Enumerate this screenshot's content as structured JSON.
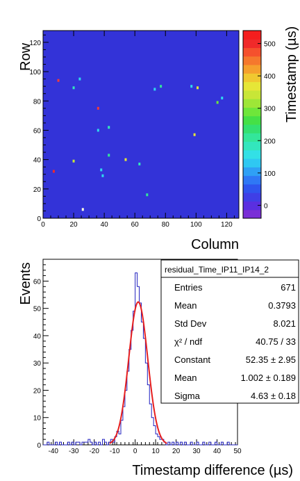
{
  "chart_data": [
    {
      "type": "heatmap",
      "xlabel": "Column",
      "ylabel": "Row",
      "colorbar_label": "Timestamp (µs)",
      "xlim": [
        0,
        128
      ],
      "ylim": [
        0,
        128
      ],
      "zlim": [
        -40,
        540
      ],
      "xticks": [
        0,
        20,
        40,
        60,
        80,
        100,
        120
      ],
      "yticks": [
        0,
        20,
        40,
        60,
        80,
        100,
        120
      ],
      "colorbar_ticks": [
        0,
        100,
        200,
        300,
        400,
        500
      ],
      "background_color": "#3333d8",
      "colorbar_colors": [
        "#7a2fd6",
        "#5a2fe0",
        "#3f3fe6",
        "#2f55ee",
        "#2f78f5",
        "#2fa0f5",
        "#2fc8f2",
        "#33e0e6",
        "#33e6bd",
        "#33e69a",
        "#33e070",
        "#45e046",
        "#6fe63a",
        "#9ee637",
        "#c8e637",
        "#e6e637",
        "#f0c830",
        "#f5a02d",
        "#f5782d",
        "#f5502d",
        "#f02a2a",
        "#f51e1e"
      ],
      "points": [
        {
          "x": 10,
          "y": 94,
          "z": 520,
          "color": "#f53a3a"
        },
        {
          "x": 24,
          "y": 95,
          "z": 170,
          "color": "#2fd8ee"
        },
        {
          "x": 20,
          "y": 89,
          "z": 230,
          "color": "#33e6bd"
        },
        {
          "x": 36,
          "y": 75,
          "z": 520,
          "color": "#f53a3a"
        },
        {
          "x": 36,
          "y": 60,
          "z": 170,
          "color": "#2fd8ee"
        },
        {
          "x": 43,
          "y": 62,
          "z": 230,
          "color": "#33e6bd"
        },
        {
          "x": 43,
          "y": 43,
          "z": 250,
          "color": "#33e69a"
        },
        {
          "x": 20,
          "y": 39,
          "z": 350,
          "color": "#c8e637"
        },
        {
          "x": 38,
          "y": 33,
          "z": 170,
          "color": "#2fd8ee"
        },
        {
          "x": 39,
          "y": 29,
          "z": 170,
          "color": "#2fd8ee"
        },
        {
          "x": 54,
          "y": 40,
          "z": 380,
          "color": "#e6e637"
        },
        {
          "x": 63,
          "y": 37,
          "z": 230,
          "color": "#33e6bd"
        },
        {
          "x": 26,
          "y": 6,
          "z": 400,
          "color": "#ffffe0"
        },
        {
          "x": 68,
          "y": 16,
          "z": 250,
          "color": "#33e69a"
        },
        {
          "x": 7,
          "y": 32,
          "z": 500,
          "color": "#f02a2a"
        },
        {
          "x": 73,
          "y": 88,
          "z": 170,
          "color": "#2fd8ee"
        },
        {
          "x": 77,
          "y": 90,
          "z": 260,
          "color": "#33e69a"
        },
        {
          "x": 97,
          "y": 90,
          "z": 170,
          "color": "#2fd8ee"
        },
        {
          "x": 101,
          "y": 89,
          "z": 380,
          "color": "#e6e637"
        },
        {
          "x": 114,
          "y": 79,
          "z": 300,
          "color": "#6fe63a"
        },
        {
          "x": 117,
          "y": 82,
          "z": 170,
          "color": "#2fd8ee"
        },
        {
          "x": 99,
          "y": 57,
          "z": 400,
          "color": "#e6e637"
        }
      ]
    },
    {
      "type": "histogram",
      "xlabel": "Timestamp difference (µs)",
      "ylabel": "Events",
      "xlim": [
        -45,
        50
      ],
      "ylim": [
        0,
        68
      ],
      "xticks": [
        -40,
        -30,
        -20,
        -10,
        0,
        10,
        20,
        30,
        40,
        50
      ],
      "yticks": [
        0,
        10,
        20,
        30,
        40,
        50,
        60
      ],
      "bin_width": 1,
      "histogram_color": "#1f1fbf",
      "fit_color": "#e61e1e",
      "bins": [
        {
          "x": -43,
          "y": 1
        },
        {
          "x": -39,
          "y": 1
        },
        {
          "x": -37,
          "y": 1
        },
        {
          "x": -33,
          "y": 1
        },
        {
          "x": -31,
          "y": 1
        },
        {
          "x": -29,
          "y": 1
        },
        {
          "x": -28,
          "y": 1
        },
        {
          "x": -26,
          "y": 1
        },
        {
          "x": -25,
          "y": 1
        },
        {
          "x": -24,
          "y": 1
        },
        {
          "x": -23,
          "y": 2
        },
        {
          "x": -22,
          "y": 1
        },
        {
          "x": -20,
          "y": 1
        },
        {
          "x": -18,
          "y": 1
        },
        {
          "x": -16,
          "y": 2
        },
        {
          "x": -15,
          "y": 1
        },
        {
          "x": -13,
          "y": 1
        },
        {
          "x": -12,
          "y": 2
        },
        {
          "x": -11,
          "y": 1
        },
        {
          "x": -10,
          "y": 3
        },
        {
          "x": -9,
          "y": 5
        },
        {
          "x": -8,
          "y": 4
        },
        {
          "x": -7,
          "y": 9
        },
        {
          "x": -6,
          "y": 14
        },
        {
          "x": -5,
          "y": 20
        },
        {
          "x": -4,
          "y": 27
        },
        {
          "x": -3,
          "y": 35
        },
        {
          "x": -2,
          "y": 42
        },
        {
          "x": -1,
          "y": 49
        },
        {
          "x": 0,
          "y": 63
        },
        {
          "x": 1,
          "y": 58
        },
        {
          "x": 2,
          "y": 52
        },
        {
          "x": 3,
          "y": 45
        },
        {
          "x": 4,
          "y": 39
        },
        {
          "x": 5,
          "y": 30
        },
        {
          "x": 6,
          "y": 22
        },
        {
          "x": 7,
          "y": 15
        },
        {
          "x": 8,
          "y": 10
        },
        {
          "x": 9,
          "y": 7
        },
        {
          "x": 10,
          "y": 4
        },
        {
          "x": 11,
          "y": 3
        },
        {
          "x": 12,
          "y": 2
        },
        {
          "x": 13,
          "y": 2
        },
        {
          "x": 14,
          "y": 1
        },
        {
          "x": 16,
          "y": 1
        },
        {
          "x": 18,
          "y": 1
        },
        {
          "x": 20,
          "y": 1
        },
        {
          "x": 22,
          "y": 1
        },
        {
          "x": 24,
          "y": 1
        },
        {
          "x": 27,
          "y": 1
        },
        {
          "x": 30,
          "y": 1
        },
        {
          "x": 33,
          "y": 1
        },
        {
          "x": 36,
          "y": 1
        },
        {
          "x": 39,
          "y": 1
        },
        {
          "x": 42,
          "y": 1
        },
        {
          "x": 45,
          "y": 1
        }
      ],
      "fit": {
        "constant": 52.35,
        "mean": 1.002,
        "sigma": 4.63
      },
      "stats_box": {
        "title": "residual_Time_IP11_IP14_2",
        "rows": [
          {
            "label": "Entries",
            "value": "671"
          },
          {
            "label": "Mean",
            "value": "0.3793"
          },
          {
            "label": "Std Dev",
            "value": "8.021"
          },
          {
            "label": "χ² / ndf",
            "value": "40.75 / 33"
          },
          {
            "label": "Constant",
            "value": "52.35 ± 2.95"
          },
          {
            "label": "Mean",
            "value": "1.002 ± 0.189"
          },
          {
            "label": "Sigma",
            "value": "4.63 ± 0.18"
          }
        ]
      }
    }
  ]
}
